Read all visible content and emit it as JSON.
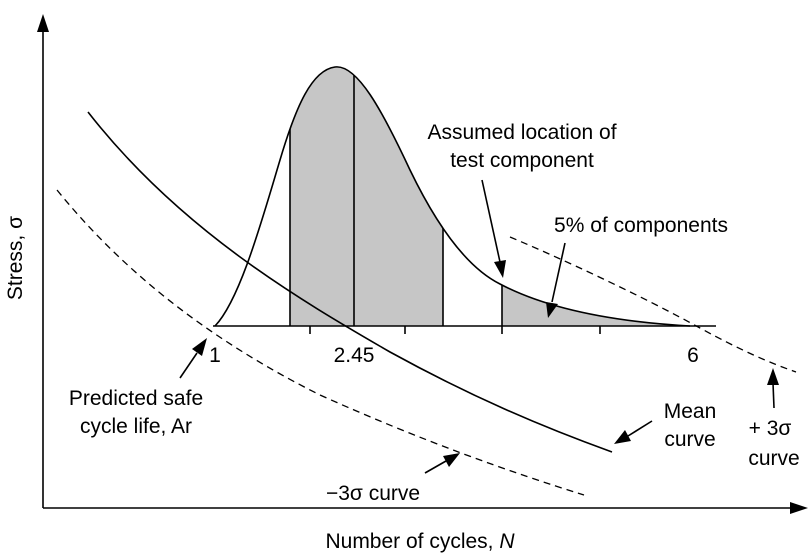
{
  "axes": {
    "y_label": "Stress, σ",
    "x_label_text": "Number of cycles, ",
    "x_label_var": "N"
  },
  "ticks": {
    "t1": "1",
    "t2": "2.45",
    "t3": "6"
  },
  "annotations": {
    "assumed_line1": "Assumed location of",
    "assumed_line2": "test component",
    "five_percent": "5% of components",
    "predicted_line1": "Predicted safe",
    "predicted_line2": "cycle life, Ar",
    "mean_line1": "Mean",
    "mean_line2": "curve",
    "plus3_line1": "+ 3σ",
    "plus3_line2": "curve",
    "minus3": "−3σ curve"
  }
}
